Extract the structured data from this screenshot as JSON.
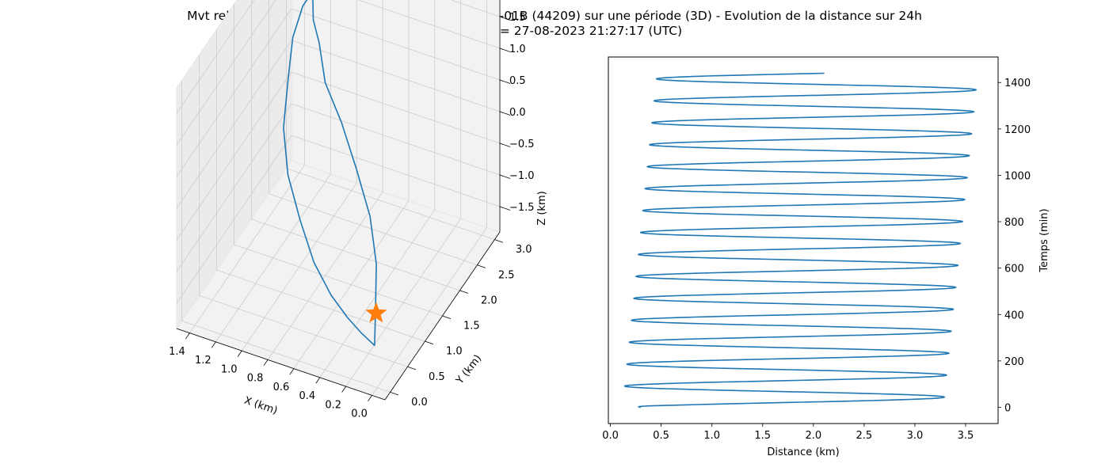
{
  "figure": {
    "title_line1": "Mvt relatif de TIANHUI 2-01A (44207) vs TIANHUI 2-01B (44209) sur une période (3D) - Evolution de la distance sur 24h",
    "title_line2": "Date début = 27-08-2023 21:27:17 (UTC)"
  },
  "colors": {
    "series": "#1f77b4",
    "marker": "#ff7f0e",
    "pane": "#f2f2f2",
    "grid": "#cccccc"
  },
  "chart_data": [
    {
      "type": "line",
      "projection": "3d",
      "xlabel": "X (km)",
      "ylabel": "Y (km)",
      "zlabel": "Z (km)",
      "xlim": [
        -0.1,
        1.5
      ],
      "ylim": [
        -0.15,
        3.15
      ],
      "zlim": [
        -1.9,
        1.9
      ],
      "xticks": [
        "0.0",
        "0.2",
        "0.4",
        "0.6",
        "0.8",
        "1.0",
        "1.2",
        "1.4"
      ],
      "yticks": [
        "0.0",
        "0.5",
        "1.0",
        "1.5",
        "2.0",
        "2.5",
        "3.0"
      ],
      "zticks": [
        "−1.5",
        "−1.0",
        "−0.5",
        "0.0",
        "0.5",
        "1.0",
        "1.5"
      ],
      "grid": true,
      "marker": {
        "shape": "star",
        "x": 0.04,
        "y": 0.12,
        "z": -0.85
      },
      "series": [
        {
          "x": [
            0.02,
            0.04,
            0.1,
            0.22,
            0.4,
            0.58,
            0.76,
            0.9,
            1.02,
            1.13,
            1.24,
            1.36,
            1.45,
            1.46,
            1.42,
            1.3,
            1.1,
            0.86,
            0.6,
            0.36,
            0.17,
            0.04
          ],
          "y": [
            0.0,
            0.1,
            0.35,
            0.62,
            0.9,
            1.15,
            1.35,
            1.7,
            1.98,
            2.38,
            2.72,
            2.95,
            3.0,
            2.9,
            2.62,
            2.3,
            1.9,
            1.4,
            0.92,
            0.5,
            0.18,
            0.02
          ],
          "z": [
            -1.25,
            -0.8,
            -0.3,
            0.15,
            0.55,
            0.95,
            1.3,
            1.55,
            1.6,
            1.5,
            1.25,
            0.8,
            0.2,
            -0.4,
            -0.9,
            -1.3,
            -1.55,
            -1.65,
            -1.6,
            -1.45,
            -1.3,
            -1.25
          ]
        }
      ]
    },
    {
      "type": "line",
      "xlabel": "Distance (km)",
      "ylabel": "Temps (min)",
      "xlim": [
        -0.02,
        3.82
      ],
      "ylim": [
        -70,
        1510
      ],
      "xticks": [
        0.0,
        0.5,
        1.0,
        1.5,
        2.0,
        2.5,
        3.0,
        3.5
      ],
      "xtick_labels": [
        "0.0",
        "0.5",
        "1.0",
        "1.5",
        "2.0",
        "2.5",
        "3.0",
        "3.5"
      ],
      "yticks": [
        0,
        200,
        400,
        600,
        800,
        1000,
        1200,
        1400
      ],
      "ytick_labels": [
        "0",
        "200",
        "400",
        "600",
        "800",
        "1000",
        "1200",
        "1400"
      ],
      "grid": false,
      "curve": {
        "t_start": 0,
        "t_end": 1440,
        "period_min": 94.6,
        "phase_min": 44,
        "min_start": 0.12,
        "min_end": 0.46,
        "max_start": 3.28,
        "max_end": 3.62,
        "d_start": 0.3,
        "d_end": 1.4
      },
      "series": [
        {
          "x": [
            0.3,
            3.28,
            0.12,
            3.62,
            0.46,
            1.4
          ],
          "y": [
            0,
            44,
            91,
            1378,
            1426,
            1440
          ]
        }
      ]
    }
  ]
}
